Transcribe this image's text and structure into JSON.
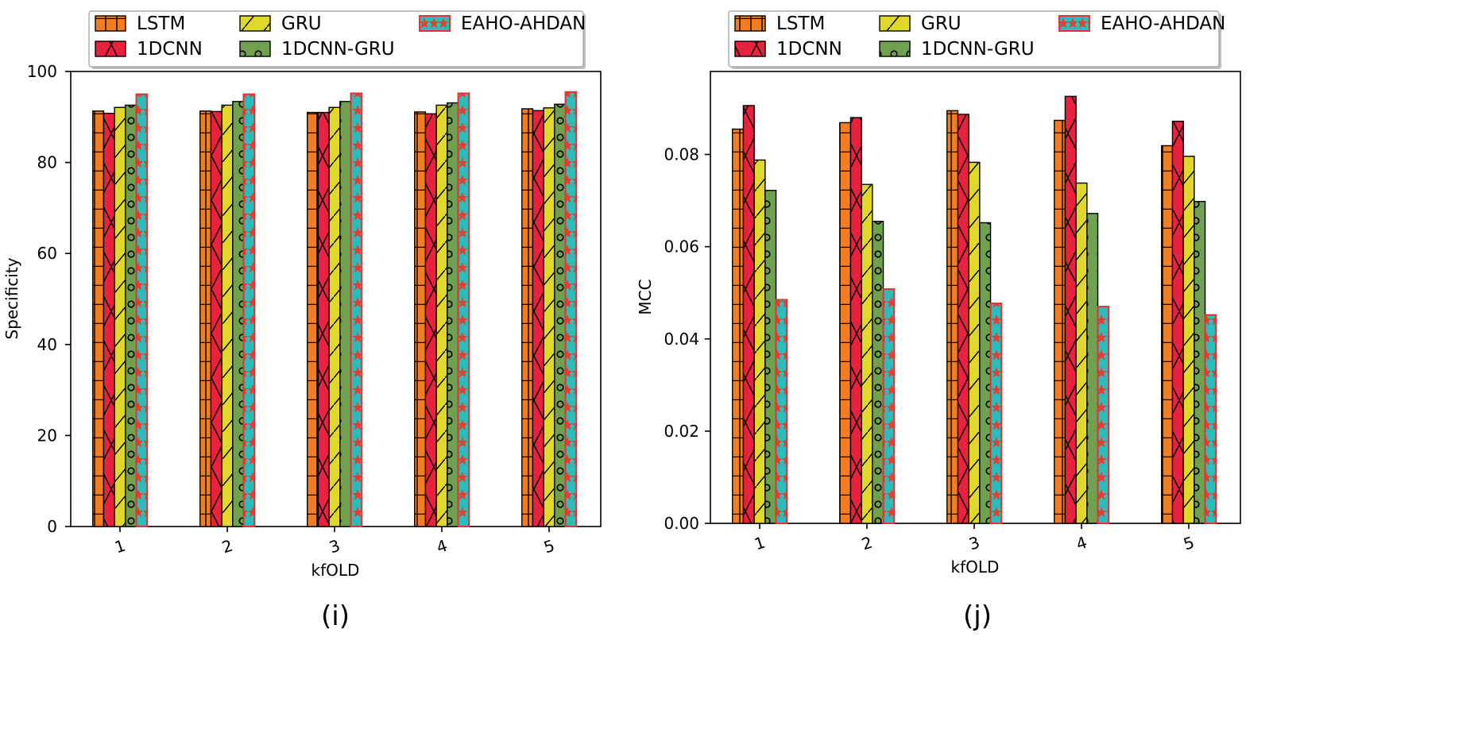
{
  "chart_data": [
    {
      "type": "bar",
      "panel_label": "(i)",
      "categories": [
        "1",
        "2",
        "3",
        "4",
        "5"
      ],
      "series": [
        {
          "name": "LSTM",
          "values": [
            91.3,
            91.3,
            91.0,
            91.1,
            91.8
          ]
        },
        {
          "name": "1DCNN",
          "values": [
            90.8,
            91.2,
            91.0,
            90.7,
            91.4
          ]
        },
        {
          "name": "GRU",
          "values": [
            92.1,
            92.6,
            92.1,
            92.6,
            92.0
          ]
        },
        {
          "name": "1DCNN-GRU",
          "values": [
            92.6,
            93.4,
            93.4,
            93.1,
            92.8
          ]
        },
        {
          "name": "EAHO-AHDAN",
          "values": [
            95.0,
            95.0,
            95.2,
            95.2,
            95.5
          ]
        }
      ],
      "xlabel": "kfOLD",
      "ylabel": "Specificity",
      "ylim": [
        0,
        100
      ],
      "yticks": [
        0,
        20,
        40,
        60,
        80,
        100
      ],
      "ytick_labels": [
        "0",
        "20",
        "40",
        "60",
        "80",
        "100"
      ],
      "legend_position": "top"
    },
    {
      "type": "bar",
      "panel_label": "(j)",
      "categories": [
        "1",
        "2",
        "3",
        "4",
        "5"
      ],
      "series": [
        {
          "name": "LSTM",
          "values": [
            0.0855,
            0.0869,
            0.0895,
            0.0874,
            0.0819
          ]
        },
        {
          "name": "1DCNN",
          "values": [
            0.0906,
            0.088,
            0.0887,
            0.0926,
            0.0872
          ]
        },
        {
          "name": "GRU",
          "values": [
            0.0788,
            0.0735,
            0.0783,
            0.0738,
            0.0796
          ]
        },
        {
          "name": "1DCNN-GRU",
          "values": [
            0.0722,
            0.0655,
            0.0652,
            0.0672,
            0.0698
          ]
        },
        {
          "name": "EAHO-AHDAN",
          "values": [
            0.0485,
            0.0508,
            0.0477,
            0.047,
            0.0452
          ]
        }
      ],
      "xlabel": "kfOLD",
      "ylabel": "MCC",
      "ylim": [
        0,
        0.098
      ],
      "yticks": [
        0,
        0.02,
        0.04,
        0.06,
        0.08
      ],
      "ytick_labels": [
        "0.00",
        "0.02",
        "0.04",
        "0.06",
        "0.08"
      ],
      "legend_position": "top"
    }
  ],
  "colors": {
    "LSTM": "#f27d22",
    "1DCNN": "#e8213f",
    "GRU": "#dfd82a",
    "1DCNN-GRU": "#6fa150",
    "EAHO-AHDAN": "#2bbcbc",
    "EAHO-AHDAN-edge": "#e83030",
    "EAHO-AHDAN-star": "#ee3b2f"
  },
  "legend": {
    "entries": [
      "LSTM",
      "GRU",
      "EAHO-AHDAN",
      "1DCNN",
      "1DCNN-GRU"
    ]
  }
}
